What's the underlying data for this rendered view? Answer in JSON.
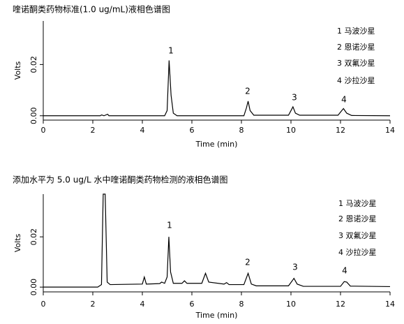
{
  "chart_data": [
    {
      "type": "line",
      "title": "喹诺酮类药物标准(1.0 ug/mL)液相色谱图",
      "x_label": "Time (min)",
      "y_label": "Volts",
      "x": [
        0,
        2.3,
        2.35,
        2.4,
        2.45,
        2.6,
        2.65,
        4.9,
        5.0,
        5.08,
        5.16,
        5.25,
        5.4,
        8.1,
        8.2,
        8.27,
        8.35,
        8.5,
        9.9,
        10.0,
        10.08,
        10.18,
        10.35,
        11.9,
        12.05,
        12.12,
        12.25,
        12.45,
        14
      ],
      "values": [
        0,
        0,
        0.0003,
        0.0002,
        0,
        0.0006,
        0,
        0,
        0.002,
        0.0216,
        0.008,
        0.001,
        0,
        0,
        0.003,
        0.0057,
        0.002,
        0.0002,
        0.0002,
        0.002,
        0.0035,
        0.001,
        0.0002,
        0.0002,
        0.002,
        0.0028,
        0.001,
        0.0001,
        0
      ],
      "color": "#000000",
      "xlim": [
        0,
        14
      ],
      "xticks": [
        0,
        2,
        4,
        6,
        8,
        10,
        12,
        14
      ],
      "ylim": [
        -0.0017,
        0.037
      ],
      "yticks": [
        {
          "value": 0,
          "label": "0.00"
        },
        {
          "value": 0.02,
          "label": "0.02"
        }
      ],
      "annotations": [
        "1",
        "2",
        "3",
        "4"
      ],
      "legend": [
        "1 马波沙星",
        "2 恩诺沙星",
        "3 双氟沙星",
        "4 沙拉沙星"
      ]
    },
    {
      "type": "line",
      "title": "添加水平为 5.0 ug/L 水中喹诺酮类药物检测的液相色谱图",
      "x_label": "Time (min)",
      "y_label": "Volts",
      "x": [
        0,
        2.2,
        2.35,
        2.42,
        2.5,
        2.58,
        2.7,
        4.0,
        4.08,
        4.16,
        4.7,
        4.78,
        4.9,
        5.0,
        5.07,
        5.14,
        5.25,
        5.6,
        5.7,
        5.8,
        6.4,
        6.55,
        6.68,
        7.3,
        7.4,
        7.5,
        8.1,
        8.27,
        8.4,
        8.6,
        9.9,
        10.05,
        10.12,
        10.25,
        10.5,
        12.0,
        12.15,
        12.25,
        12.4,
        14
      ],
      "values": [
        0,
        0,
        0.001,
        0.037,
        0.037,
        0.002,
        0.001,
        0.0012,
        0.004,
        0.0012,
        0.0014,
        0.002,
        0.0015,
        0.004,
        0.02,
        0.006,
        0.0015,
        0.0015,
        0.0025,
        0.0015,
        0.0015,
        0.0055,
        0.002,
        0.0012,
        0.0018,
        0.001,
        0.001,
        0.0055,
        0.0012,
        0.0005,
        0.0005,
        0.0025,
        0.0035,
        0.0012,
        0.0003,
        0.0003,
        0.0022,
        0.002,
        0.0004,
        0.0002
      ],
      "color": "#000000",
      "xlim": [
        0,
        14
      ],
      "xticks": [
        0,
        2,
        4,
        6,
        8,
        10,
        12,
        14
      ],
      "ylim": [
        -0.0019,
        0.037
      ],
      "yticks": [
        {
          "value": 0,
          "label": "0.00"
        },
        {
          "value": 0.02,
          "label": "0.02"
        }
      ],
      "annotations": [
        "1",
        "2",
        "3",
        "4"
      ],
      "legend": [
        "1 马波沙星",
        "2 恩诺沙星",
        "3 双氟沙星",
        "4 沙拉沙星"
      ]
    }
  ]
}
